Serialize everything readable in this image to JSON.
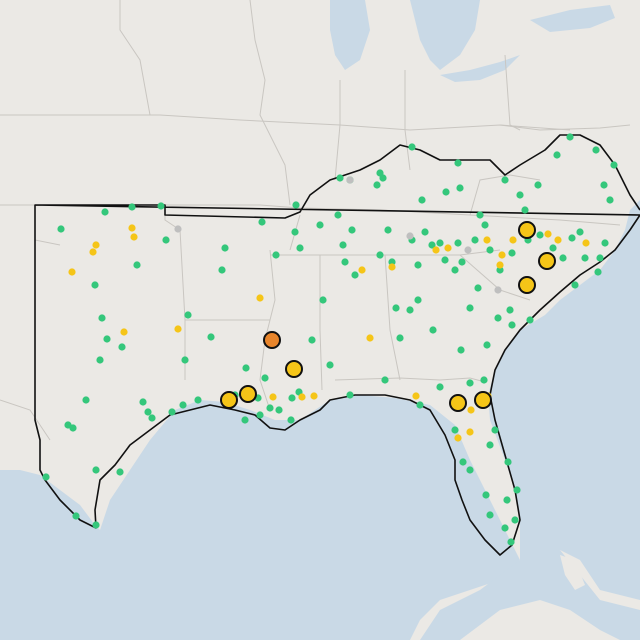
{
  "map": {
    "colors": {
      "land": "#ebe9e5",
      "water": "#c9d9e6",
      "state_border": "#c9c6c1",
      "region_outline": "#111111",
      "green": "#34c77b",
      "yellow": "#f5c518",
      "orange": "#e8852b",
      "gray": "#bfbfbf"
    },
    "legend_meaning_visible": false,
    "site_categories": [
      "green",
      "yellow",
      "orange",
      "gray"
    ],
    "large_markers": [
      {
        "category": "yellow",
        "count_note": "large"
      },
      {
        "category": "orange",
        "count_note": "large"
      }
    ]
  }
}
